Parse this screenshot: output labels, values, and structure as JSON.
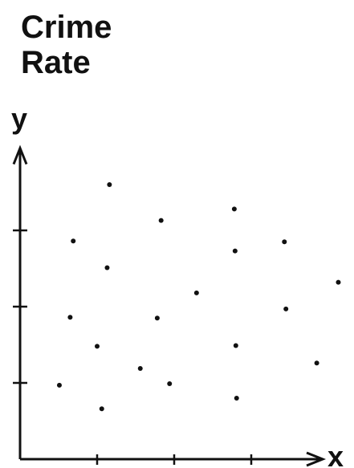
{
  "chart_data": {
    "type": "scatter",
    "title": "Crime Rate",
    "xlabel": "x",
    "ylabel": "y",
    "x": [
      1.16,
      0.69,
      1.83,
      2.78,
      2.79,
      3.43,
      1.13,
      2.29,
      4.13,
      0.65,
      1.78,
      3.45,
      1.0,
      2.8,
      1.56,
      3.85,
      0.51,
      1.94,
      2.81,
      1.06
    ],
    "values": [
      3.6,
      2.86,
      3.13,
      3.28,
      2.73,
      2.85,
      2.51,
      2.18,
      2.32,
      1.86,
      1.85,
      1.97,
      1.48,
      1.49,
      1.19,
      1.26,
      0.97,
      0.99,
      0.8,
      0.66
    ],
    "color": "#111111",
    "xlim": [
      0,
      4.3
    ],
    "ylim": [
      0,
      4.1
    ],
    "xticks": [
      1,
      2,
      3
    ],
    "yticks": [
      1,
      2,
      3
    ],
    "grid": false
  }
}
